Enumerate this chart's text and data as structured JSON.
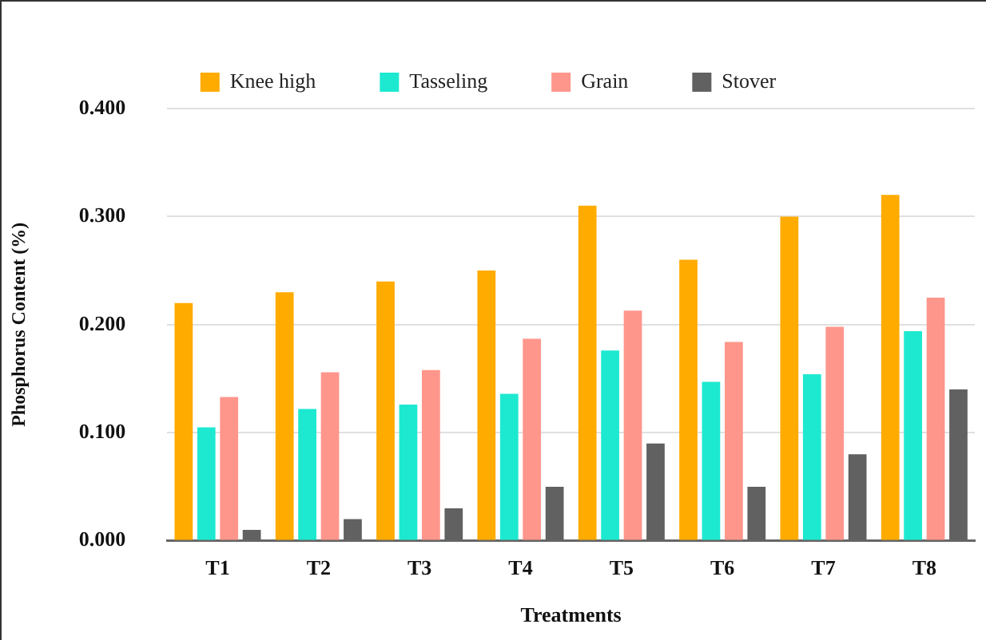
{
  "chart_data": {
    "type": "bar",
    "xlabel": "Treatments",
    "ylabel": "Phosphorus Content (%)",
    "categories": [
      "T1",
      "T2",
      "T3",
      "T4",
      "T5",
      "T6",
      "T7",
      "T8"
    ],
    "series": [
      {
        "name": "Knee high",
        "color": "#ffab00",
        "values": [
          0.22,
          0.23,
          0.24,
          0.25,
          0.31,
          0.26,
          0.3,
          0.32
        ]
      },
      {
        "name": "Tasseling",
        "color": "#1de9d0",
        "values": [
          0.105,
          0.122,
          0.126,
          0.136,
          0.176,
          0.147,
          0.154,
          0.194
        ]
      },
      {
        "name": "Grain",
        "color": "#ff968c",
        "values": [
          0.133,
          0.156,
          0.158,
          0.187,
          0.213,
          0.184,
          0.198,
          0.225
        ]
      },
      {
        "name": "Stover",
        "color": "#616161",
        "values": [
          0.01,
          0.02,
          0.03,
          0.05,
          0.09,
          0.05,
          0.08,
          0.14
        ]
      }
    ],
    "ylim": [
      0,
      0.4
    ],
    "yticks": [
      {
        "value": 0,
        "label": "0.000"
      },
      {
        "value": 0.1,
        "label": "0.100"
      },
      {
        "value": 0.2,
        "label": "0.200"
      },
      {
        "value": 0.3,
        "label": "0.300"
      },
      {
        "value": 0.4,
        "label": "0.400"
      }
    ],
    "grid": "y",
    "legend": "top"
  }
}
